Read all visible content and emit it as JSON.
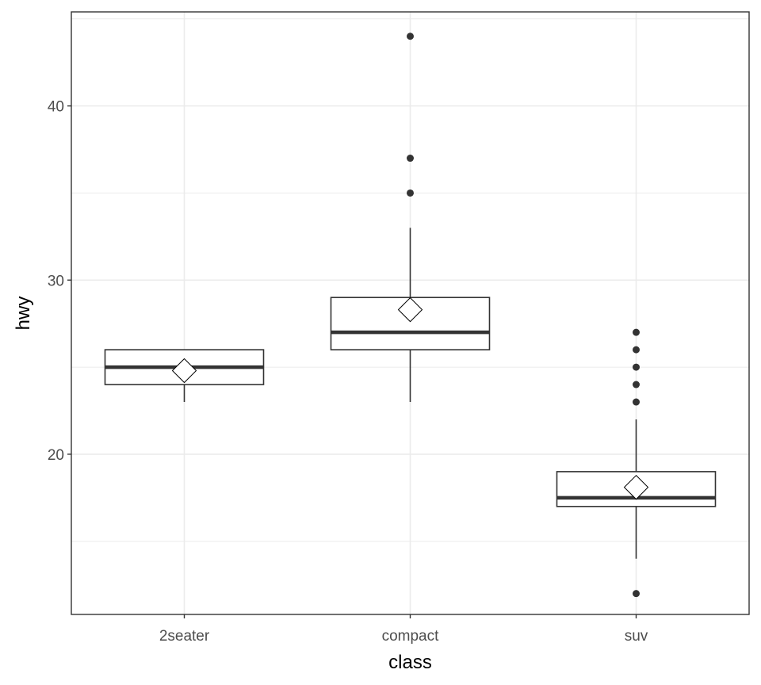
{
  "chart_data": {
    "type": "boxplot",
    "title": "",
    "xlabel": "class",
    "ylabel": "hwy",
    "categories": [
      "2seater",
      "compact",
      "suv"
    ],
    "ylim": [
      10.8,
      45.4
    ],
    "yticks": [
      20,
      30,
      40
    ],
    "ytick_labels": [
      "20",
      "30",
      "40"
    ],
    "y_minor_ticks": [
      15,
      25,
      35,
      45
    ],
    "grid": true,
    "boxes": [
      {
        "category": "2seater",
        "whisker_low": 23,
        "q1": 24,
        "median": 25,
        "q3": 26,
        "whisker_high": 26,
        "mean": 24.8,
        "outliers": []
      },
      {
        "category": "compact",
        "whisker_low": 23,
        "q1": 26,
        "median": 27,
        "q3": 29,
        "whisker_high": 33,
        "mean": 28.3,
        "outliers": [
          35,
          37,
          44
        ]
      },
      {
        "category": "suv",
        "whisker_low": 14,
        "q1": 17,
        "median": 17.5,
        "q3": 19,
        "whisker_high": 22,
        "mean": 18.1,
        "outliers": [
          12,
          23,
          24,
          25,
          26,
          27
        ]
      }
    ],
    "colors": {
      "background": "#ffffff",
      "panel_border": "#333333",
      "grid": "#ebebeb",
      "box_line": "#333333",
      "box_fill": "#ffffff",
      "outlier": "#333333",
      "tick_label": "#4d4d4d",
      "axis_title": "#000000"
    }
  }
}
